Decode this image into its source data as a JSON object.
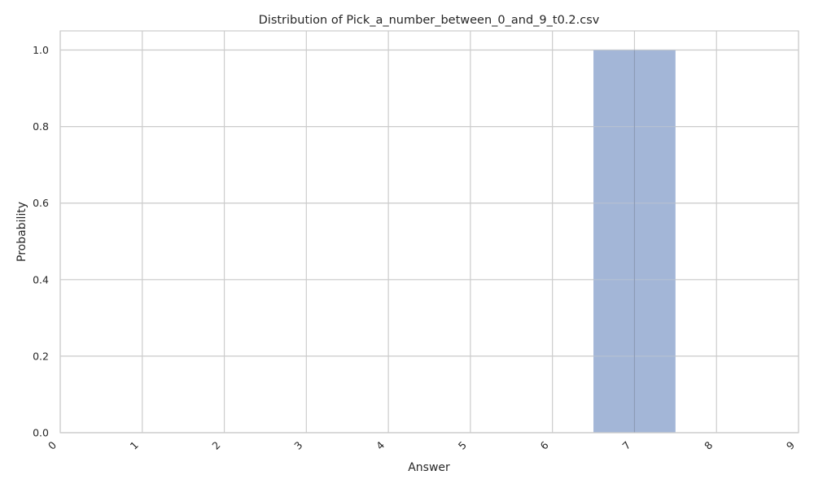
{
  "chart_data": {
    "type": "bar",
    "title": "Distribution of Pick_a_number_between_0_and_9_t0.2.csv",
    "xlabel": "Answer",
    "ylabel": "Probability",
    "xlim": [
      0,
      9
    ],
    "ylim": [
      0,
      1.05
    ],
    "x_ticks": [
      "0",
      "1",
      "2",
      "3",
      "4",
      "5",
      "6",
      "7",
      "8",
      "9"
    ],
    "y_ticks": [
      "0.0",
      "0.2",
      "0.4",
      "0.6",
      "0.8",
      "1.0"
    ],
    "bars": [
      {
        "x": 7,
        "value": 1.0
      }
    ],
    "bar_color": "#a3b6d7",
    "grid": true,
    "legend": "none"
  }
}
